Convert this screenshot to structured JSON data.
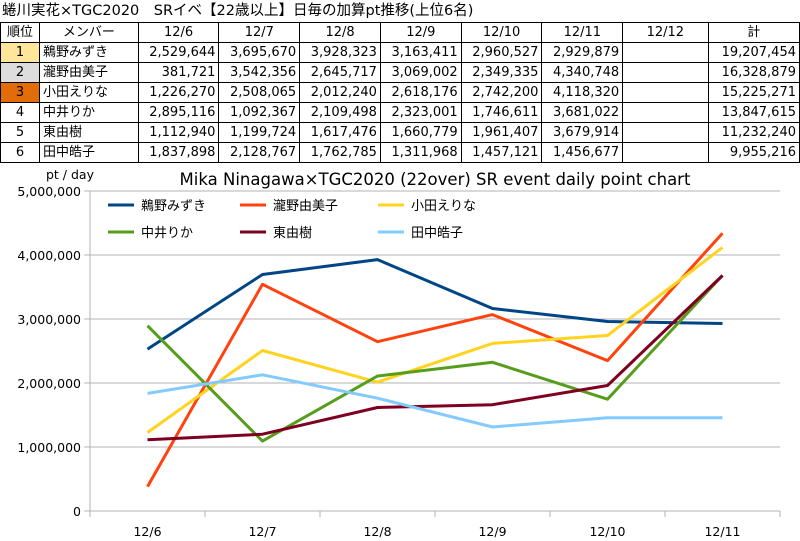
{
  "title": "蜷川実花×TGC2020　SRイベ【22歳以上】日毎の加算pt推移(上位6名)",
  "table": {
    "headers": [
      "順位",
      "メンバー",
      "12/6",
      "12/7",
      "12/8",
      "12/9",
      "12/10",
      "12/11",
      "12/12",
      "計"
    ],
    "rows": [
      {
        "rank": "1",
        "name": "鵜野みずき",
        "values": [
          "2,529,644",
          "3,695,670",
          "3,928,323",
          "3,163,411",
          "2,960,527",
          "2,929,879",
          ""
        ],
        "total": "19,207,454",
        "rank_color": "#ffe699"
      },
      {
        "rank": "2",
        "name": "瀧野由美子",
        "values": [
          "381,721",
          "3,542,356",
          "2,645,717",
          "3,069,002",
          "2,349,335",
          "4,340,748",
          ""
        ],
        "total": "16,328,879",
        "rank_color": "#dddddd"
      },
      {
        "rank": "3",
        "name": "小田えりな",
        "values": [
          "1,226,270",
          "2,508,065",
          "2,012,240",
          "2,618,176",
          "2,742,200",
          "4,118,320",
          ""
        ],
        "total": "15,225,271",
        "rank_color": "#e26b0a"
      },
      {
        "rank": "4",
        "name": "中井りか",
        "values": [
          "2,895,116",
          "1,092,367",
          "2,109,498",
          "2,323,001",
          "1,746,611",
          "3,681,022",
          ""
        ],
        "total": "13,847,615",
        "rank_color": "#ffffff"
      },
      {
        "rank": "5",
        "name": "東由樹",
        "values": [
          "1,112,940",
          "1,199,724",
          "1,617,476",
          "1,660,779",
          "1,961,407",
          "3,679,914",
          ""
        ],
        "total": "11,232,240",
        "rank_color": "#ffffff"
      },
      {
        "rank": "6",
        "name": "田中皓子",
        "values": [
          "1,837,898",
          "2,128,767",
          "1,762,785",
          "1,311,968",
          "1,457,121",
          "1,456,677",
          ""
        ],
        "total": "9,955,216",
        "rank_color": "#ffffff"
      }
    ]
  },
  "chart_data": {
    "type": "line",
    "title": "Mika Ninagawa×TGC2020 (22over) SR event daily point chart",
    "ylabel": "pt / day",
    "categories": [
      "12/6",
      "12/7",
      "12/8",
      "12/9",
      "12/10",
      "12/11"
    ],
    "ylim": [
      0,
      5000000
    ],
    "yticks": [
      0,
      1000000,
      2000000,
      3000000,
      4000000,
      5000000
    ],
    "ytick_labels": [
      "0",
      "1,000,000",
      "2,000,000",
      "3,000,000",
      "4,000,000",
      "5,000,000"
    ],
    "grid": true,
    "legend_position": "top-left",
    "series": [
      {
        "name": "鵜野みずき",
        "color": "#004586",
        "values": [
          2529644,
          3695670,
          3928323,
          3163411,
          2960527,
          2929879
        ]
      },
      {
        "name": "瀧野由美子",
        "color": "#ff420e",
        "values": [
          381721,
          3542356,
          2645717,
          3069002,
          2349335,
          4340748
        ]
      },
      {
        "name": "小田えりな",
        "color": "#ffd320",
        "values": [
          1226270,
          2508065,
          2012240,
          2618176,
          2742200,
          4118320
        ]
      },
      {
        "name": "中井りか",
        "color": "#579d1c",
        "values": [
          2895116,
          1092367,
          2109498,
          2323001,
          1746611,
          3681022
        ]
      },
      {
        "name": "東由樹",
        "color": "#7e0021",
        "values": [
          1112940,
          1199724,
          1617476,
          1660779,
          1961407,
          3679914
        ]
      },
      {
        "name": "田中皓子",
        "color": "#83caff",
        "values": [
          1837898,
          2128767,
          1762785,
          1311968,
          1457121,
          1456677
        ]
      }
    ]
  }
}
